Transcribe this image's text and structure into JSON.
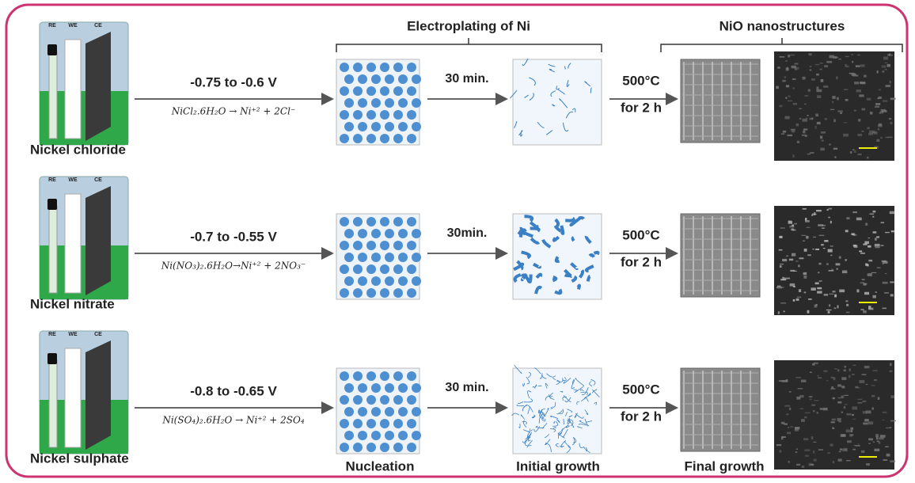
{
  "header": {
    "electroplating": "Electroplating of Ni",
    "nio": "NiO nanostructures"
  },
  "rows": [
    {
      "name": "Nickel chloride",
      "voltage": "-0.75 to -0.6 V",
      "equation": "NiCl₂.6H₂O  → Ni⁺² + 2Cl⁻",
      "time": "30 min.",
      "anneal_temp": "500°C",
      "anneal_time": "for 2 h",
      "electrodes": [
        "RE",
        "WE",
        "CE"
      ]
    },
    {
      "name": "Nickel nitrate",
      "voltage": "-0.7 to -0.55 V",
      "equation": "Ni(NO₃)₂.6H₂O→Ni⁺² + 2NO₃⁻",
      "time": "30min.",
      "anneal_temp": "500°C",
      "anneal_time": "for 2 h",
      "electrodes": [
        "RE",
        "WE",
        "CE"
      ]
    },
    {
      "name": "Nickel sulphate",
      "voltage": "-0.8 to -0.65 V",
      "equation": "Ni(SO₄)₂.6H₂O → Ni⁺² + 2SO₄",
      "time": "30 min.",
      "anneal_temp": "500°C",
      "anneal_time": "for 2 h",
      "electrodes": [
        "RE",
        "WE",
        "CE"
      ]
    }
  ],
  "stages": [
    "Nucleation",
    "Initial growth",
    "Final growth"
  ]
}
